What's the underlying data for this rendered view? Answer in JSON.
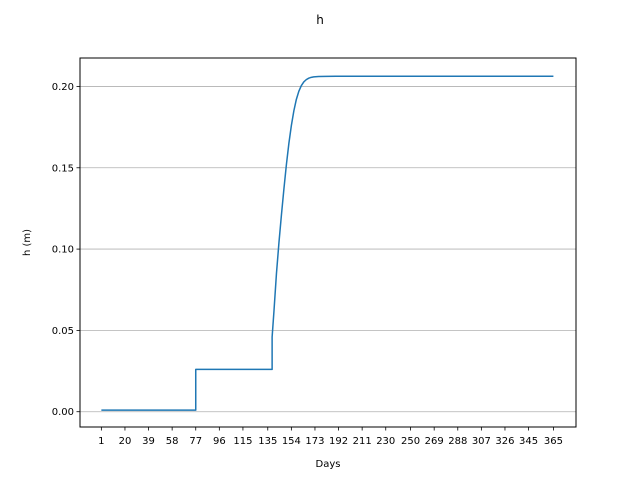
{
  "chart_data": {
    "type": "line",
    "title": "h",
    "xlabel": "Days",
    "ylabel": "h (m)",
    "xlim": [
      -16.2,
      383.2
    ],
    "ylim": [
      -0.0094,
      0.2175
    ],
    "x_ticks": [
      1,
      20,
      39,
      58,
      77,
      96,
      115,
      135,
      154,
      173,
      192,
      211,
      230,
      250,
      269,
      288,
      307,
      326,
      345,
      365
    ],
    "x_tick_labels": [
      "1",
      "20",
      "39",
      "58",
      "77",
      "96",
      "115",
      "135",
      "154",
      "173",
      "192",
      "211",
      "230",
      "250",
      "269",
      "288",
      "307",
      "326",
      "345",
      "365"
    ],
    "y_ticks": [
      0.0,
      0.05,
      0.1,
      0.15,
      0.2
    ],
    "y_tick_labels": [
      "0.00",
      "0.05",
      "0.10",
      "0.15",
      "0.20"
    ],
    "grid": "y-major",
    "series_color": "#1f77b4",
    "series": [
      {
        "x": [
          1,
          77,
          77,
          79,
          100,
          120,
          138.5,
          138.5,
          140,
          142,
          144,
          146,
          148,
          150,
          152,
          154,
          156,
          158,
          160,
          162,
          164,
          166,
          168,
          170,
          172,
          176,
          182,
          190,
          200,
          365
        ],
        "y": [
          0.001,
          0.001,
          0.026,
          0.026,
          0.026,
          0.026,
          0.026,
          0.046,
          0.062,
          0.085,
          0.104,
          0.121,
          0.137,
          0.152,
          0.165,
          0.176,
          0.185,
          0.192,
          0.197,
          0.2005,
          0.2028,
          0.2042,
          0.2051,
          0.2056,
          0.2059,
          0.2061,
          0.2062,
          0.2063,
          0.2063,
          0.2063
        ]
      }
    ]
  }
}
